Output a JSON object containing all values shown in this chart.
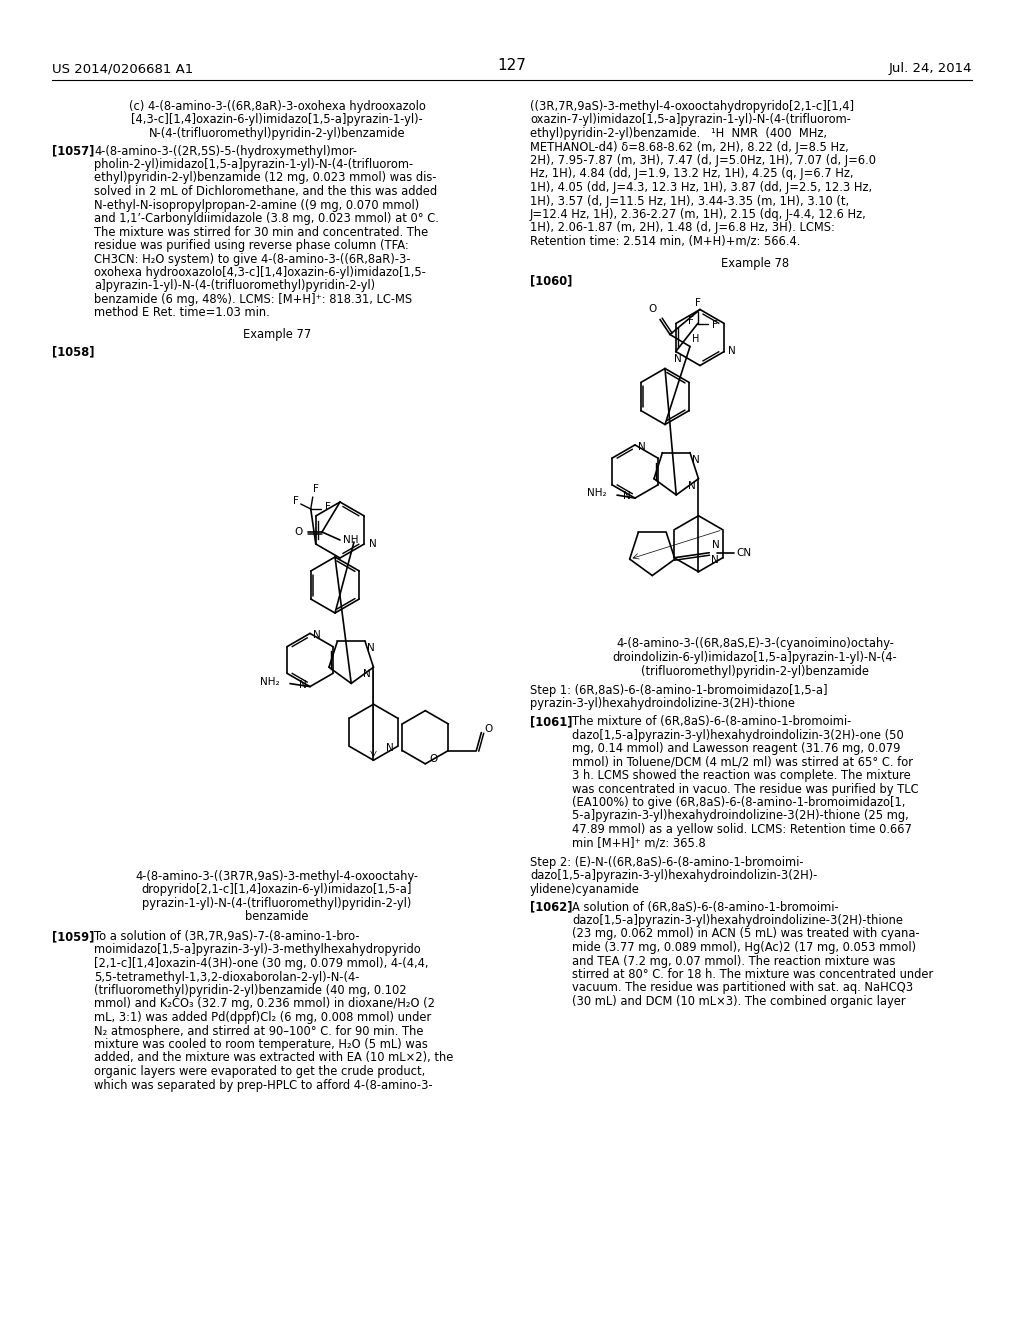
{
  "page_number": "127",
  "header_left": "US 2014/0206681 A1",
  "header_right": "Jul. 24, 2014",
  "background_color": "#ffffff",
  "left_col_texts": {
    "title_lines": [
      "(c) 4-(8-amino-3-((6R,8aR)-3-oxohexa hydrooxazolo",
      "[4,3-c][1,4]oxazin-6-yl)imidazo[1,5-a]pyrazin-1-yl)-",
      "N-(4-(trifluoromethyl)pyridin-2-yl)benzamide"
    ],
    "para1057_lines": [
      "[1057]   4-(8-amino-3-((2R,5S)-5-(hydroxymethyl)mor-",
      "pholin-2-yl)imidazo[1,5-a]pyrazin-1-yl)-N-(4-(trifluorom-",
      "ethyl)pyridin-2-yl)benzamide (12 mg, 0.023 mmol) was dis-",
      "solved in 2 mL of Dichloromethane, and the this was added",
      "N-ethyl-N-isopropylpropan-2-amine ((9 mg, 0.070 mmol)",
      "and 1,1’-Carbonyldiimidazole (3.8 mg, 0.023 mmol) at 0° C.",
      "The mixture was stirred for 30 min and concentrated. The",
      "residue was purified using reverse phase column (TFA:",
      "CH3CN: H₂O system) to give 4-(8-amino-3-((6R,8aR)-3-",
      "oxohexa hydrooxazolo[4,3-c][1,4]oxazin-6-yl)imidazo[1,5-",
      "a]pyrazin-1-yl)-N-(4-(trifluoromethyl)pyridin-2-yl)",
      "benzamide (6 mg, 48%). LCMS: [M+H]⁺: 818.31, LC-MS",
      "method E Ret. time=1.03 min."
    ],
    "example77": "Example 77",
    "label1058": "[1058]",
    "cap77_lines": [
      "4-(8-amino-3-((3R7R,9aS)-3-methyl-4-oxooctahy-",
      "dropyrido[2,1-c][1,4]oxazin-6-yl)imidazo[1,5-a]",
      "pyrazin-1-yl)-N-(4-(trifluoromethyl)pyridin-2-yl)",
      "benzamide"
    ],
    "para1059_lines": [
      "[1059]   To a solution of (3R,7R,9aS)-7-(8-amino-1-bro-",
      "moimidazo[1,5-a]pyrazin-3-yl)-3-methylhexahydropyrido",
      "[2,1-c][1,4]oxazin-4(3H)-one (30 mg, 0.079 mmol), 4-(4,4,",
      "5,5-tetramethyl-1,3,2-dioxaborolan-2-yl)-N-(4-",
      "(trifluoromethyl)pyridin-2-yl)benzamide (40 mg, 0.102",
      "mmol) and K₂CO₃ (32.7 mg, 0.236 mmol) in dioxane/H₂O (2",
      "mL, 3:1) was added Pd(dppf)Cl₂ (6 mg, 0.008 mmol) under",
      "N₂ atmosphere, and stirred at 90–100° C. for 90 min. The",
      "mixture was cooled to room temperature, H₂O (5 mL) was",
      "added, and the mixture was extracted with EA (10 mL×2), the",
      "organic layers were evaporated to get the crude product,",
      "which was separated by prep-HPLC to afford 4-(8-amino-3-"
    ]
  },
  "right_col_texts": {
    "cont_lines": [
      "((3R,7R,9aS)-3-methyl-4-oxooctahydropyrido[2,1-c][1,4]",
      "oxazin-7-yl)imidazo[1,5-a]pyrazin-1-yl)-N-(4-(trifluorom-",
      "ethyl)pyridin-2-yl)benzamide.   ¹H  NMR  (400  MHz,",
      "METHANOL-d4) δ=8.68-8.62 (m, 2H), 8.22 (d, J=8.5 Hz,",
      "2H), 7.95-7.87 (m, 3H), 7.47 (d, J=5.0Hz, 1H), 7.07 (d, J=6.0",
      "Hz, 1H), 4.84 (dd, J=1.9, 13.2 Hz, 1H), 4.25 (q, J=6.7 Hz,",
      "1H), 4.05 (dd, J=4.3, 12.3 Hz, 1H), 3.87 (dd, J=2.5, 12.3 Hz,",
      "1H), 3.57 (d, J=11.5 Hz, 1H), 3.44-3.35 (m, 1H), 3.10 (t,",
      "J=12.4 Hz, 1H), 2.36-2.27 (m, 1H), 2.15 (dq, J-4.4, 12.6 Hz,",
      "1H), 2.06-1.87 (m, 2H), 1.48 (d, J=6.8 Hz, 3H). LCMS:",
      "Retention time: 2.514 min, (M+H)+m/z: 566.4."
    ],
    "example78": "Example 78",
    "label1060": "[1060]",
    "cap78_lines": [
      "4-(8-amino-3-((6R,8aS,E)-3-(cyanoimino)octahy-",
      "droindolizin-6-yl)imidazo[1,5-a]pyrazin-1-yl)-N-(4-",
      "(trifluoromethyl)pyridin-2-yl)benzamide"
    ],
    "step1_lines": [
      "Step 1: (6R,8aS)-6-(8-amino-1-bromoimidazo[1,5-a]",
      "pyrazin-3-yl)hexahydroindolizine-3(2H)-thione"
    ],
    "para1061_lines": [
      "[1061]   The mixture of (6R,8aS)-6-(8-amino-1-bromoimi-",
      "dazo[1,5-a]pyrazin-3-yl)hexahydroindolizin-3(2H)-one (50",
      "mg, 0.14 mmol) and Lawesson reagent (31.76 mg, 0.079",
      "mmol) in Toluene/DCM (4 mL/2 ml) was stirred at 65° C. for",
      "3 h. LCMS showed the reaction was complete. The mixture",
      "was concentrated in vacuo. The residue was purified by TLC",
      "(EA100%) to give (6R,8aS)-6-(8-amino-1-bromoimidazo[1,",
      "5-a]pyrazin-3-yl)hexahydroindolizine-3(2H)-thione (25 mg,",
      "47.89 mmol) as a yellow solid. LCMS: Retention time 0.667",
      "min [M+H]⁺ m/z: 365.8"
    ],
    "step2_lines": [
      "Step 2: (E)-N-((6R,8aS)-6-(8-amino-1-bromoimi-",
      "dazo[1,5-a]pyrazin-3-yl)hexahydroindolizin-3(2H)-",
      "ylidene)cyanamide"
    ],
    "para1062_lines": [
      "[1062]   A solution of (6R,8aS)-6-(8-amino-1-bromoimi-",
      "dazo[1,5-a]pyrazin-3-yl)hexahydroindolizine-3(2H)-thione",
      "(23 mg, 0.062 mmol) in ACN (5 mL) was treated with cyana-",
      "mide (3.77 mg, 0.089 mmol), Hg(Ac)2 (17 mg, 0.053 mmol)",
      "and TEA (7.2 mg, 0.07 mmol). The reaction mixture was",
      "stirred at 80° C. for 18 h. The mixture was concentrated under",
      "vacuum. The residue was partitioned with sat. aq. NaHCQ3",
      "(30 mL) and DCM (10 mL×3). The combined organic layer"
    ]
  }
}
